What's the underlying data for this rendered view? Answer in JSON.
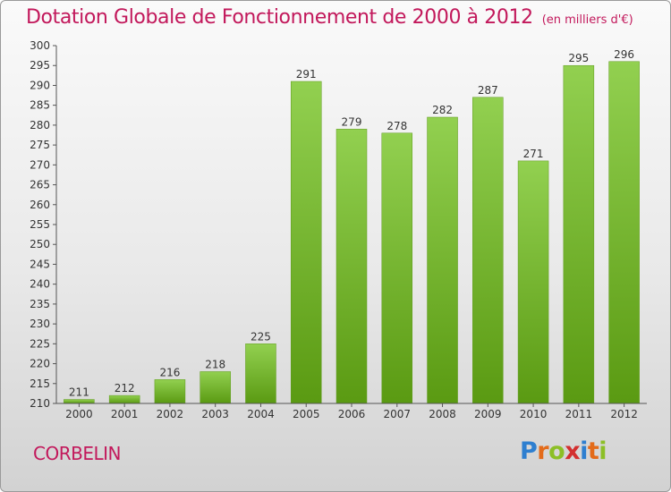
{
  "title": "Dotation Globale de Fonctionnement de 2000 à 2012",
  "subtitle": "(en milliers d'€)",
  "commune": "CORBELIN",
  "logo": {
    "letters": [
      "P",
      "r",
      "o",
      "x",
      "i",
      "t",
      "i"
    ],
    "colors": [
      "#2e7fd0",
      "#e36b1a",
      "#8cbf26",
      "#d32f2f",
      "#2e7fd0",
      "#e36b1a",
      "#8cbf26"
    ]
  },
  "chart_data": {
    "type": "bar",
    "title": "Dotation Globale de Fonctionnement de 2000 à 2012",
    "subtitle": "(en milliers d'€)",
    "categories": [
      "2000",
      "2001",
      "2002",
      "2003",
      "2004",
      "2005",
      "2006",
      "2007",
      "2008",
      "2009",
      "2010",
      "2011",
      "2012"
    ],
    "values": [
      211,
      212,
      216,
      218,
      225,
      291,
      279,
      278,
      282,
      287,
      271,
      295,
      296
    ],
    "ylim": [
      210,
      300
    ],
    "yticks": [
      210,
      215,
      220,
      225,
      230,
      235,
      240,
      245,
      250,
      255,
      260,
      265,
      270,
      275,
      280,
      285,
      290,
      295,
      300
    ],
    "grid": false,
    "bar_color": "#7cb82f"
  }
}
